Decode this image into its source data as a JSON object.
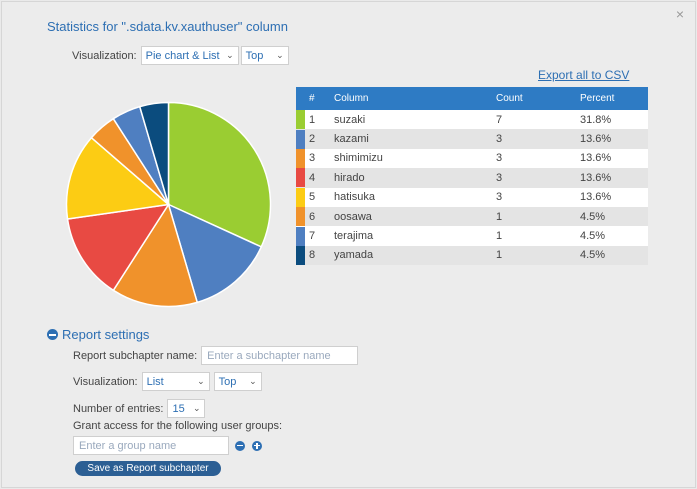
{
  "title": "Statistics for \".sdata.kv.xauthuser\" column",
  "visualization_top": {
    "label": "Visualization:",
    "type_value": "Pie chart & List",
    "order_value": "Top"
  },
  "export_label": "Export all to CSV",
  "table": {
    "headers": [
      "#",
      "Column",
      "Count",
      "Percent"
    ],
    "rows": [
      {
        "num": "1",
        "name": "suzaki",
        "count": "7",
        "pct": "31.8%",
        "color": "#9acd32"
      },
      {
        "num": "2",
        "name": "kazami",
        "count": "3",
        "pct": "13.6%",
        "color": "#4f7fc1"
      },
      {
        "num": "3",
        "name": "shimimizu",
        "count": "3",
        "pct": "13.6%",
        "color": "#f0922b"
      },
      {
        "num": "4",
        "name": "hirado",
        "count": "3",
        "pct": "13.6%",
        "color": "#e84a43"
      },
      {
        "num": "5",
        "name": "hatisuka",
        "count": "3",
        "pct": "13.6%",
        "color": "#fccc14"
      },
      {
        "num": "6",
        "name": "oosawa",
        "count": "1",
        "pct": "4.5%",
        "color": "#f0922b"
      },
      {
        "num": "7",
        "name": "terajima",
        "count": "1",
        "pct": "4.5%",
        "color": "#4f7fc1"
      },
      {
        "num": "8",
        "name": "yamada",
        "count": "1",
        "pct": "4.5%",
        "color": "#0b4c7e"
      }
    ]
  },
  "chart_data": {
    "type": "pie",
    "categories": [
      "suzaki",
      "kazami",
      "shimimizu",
      "hirado",
      "hatisuka",
      "oosawa",
      "terajima",
      "yamada"
    ],
    "values": [
      7,
      3,
      3,
      3,
      3,
      1,
      1,
      1
    ],
    "colors": [
      "#9acd32",
      "#4f7fc1",
      "#f0922b",
      "#e84a43",
      "#fccc14",
      "#f0922b",
      "#4f7fc1",
      "#0b4c7e"
    ]
  },
  "report": {
    "heading": "Report settings",
    "subchapter_label": "Report subchapter name:",
    "subchapter_placeholder": "Enter a subchapter name",
    "visualization_label": "Visualization:",
    "visualization_value": "List",
    "order_value": "Top",
    "entries_label": "Number of entries:",
    "entries_value": "15",
    "access_label": "Grant access for the following user groups:",
    "group_placeholder": "Enter a group name",
    "save_label": "Save as Report subchapter"
  }
}
